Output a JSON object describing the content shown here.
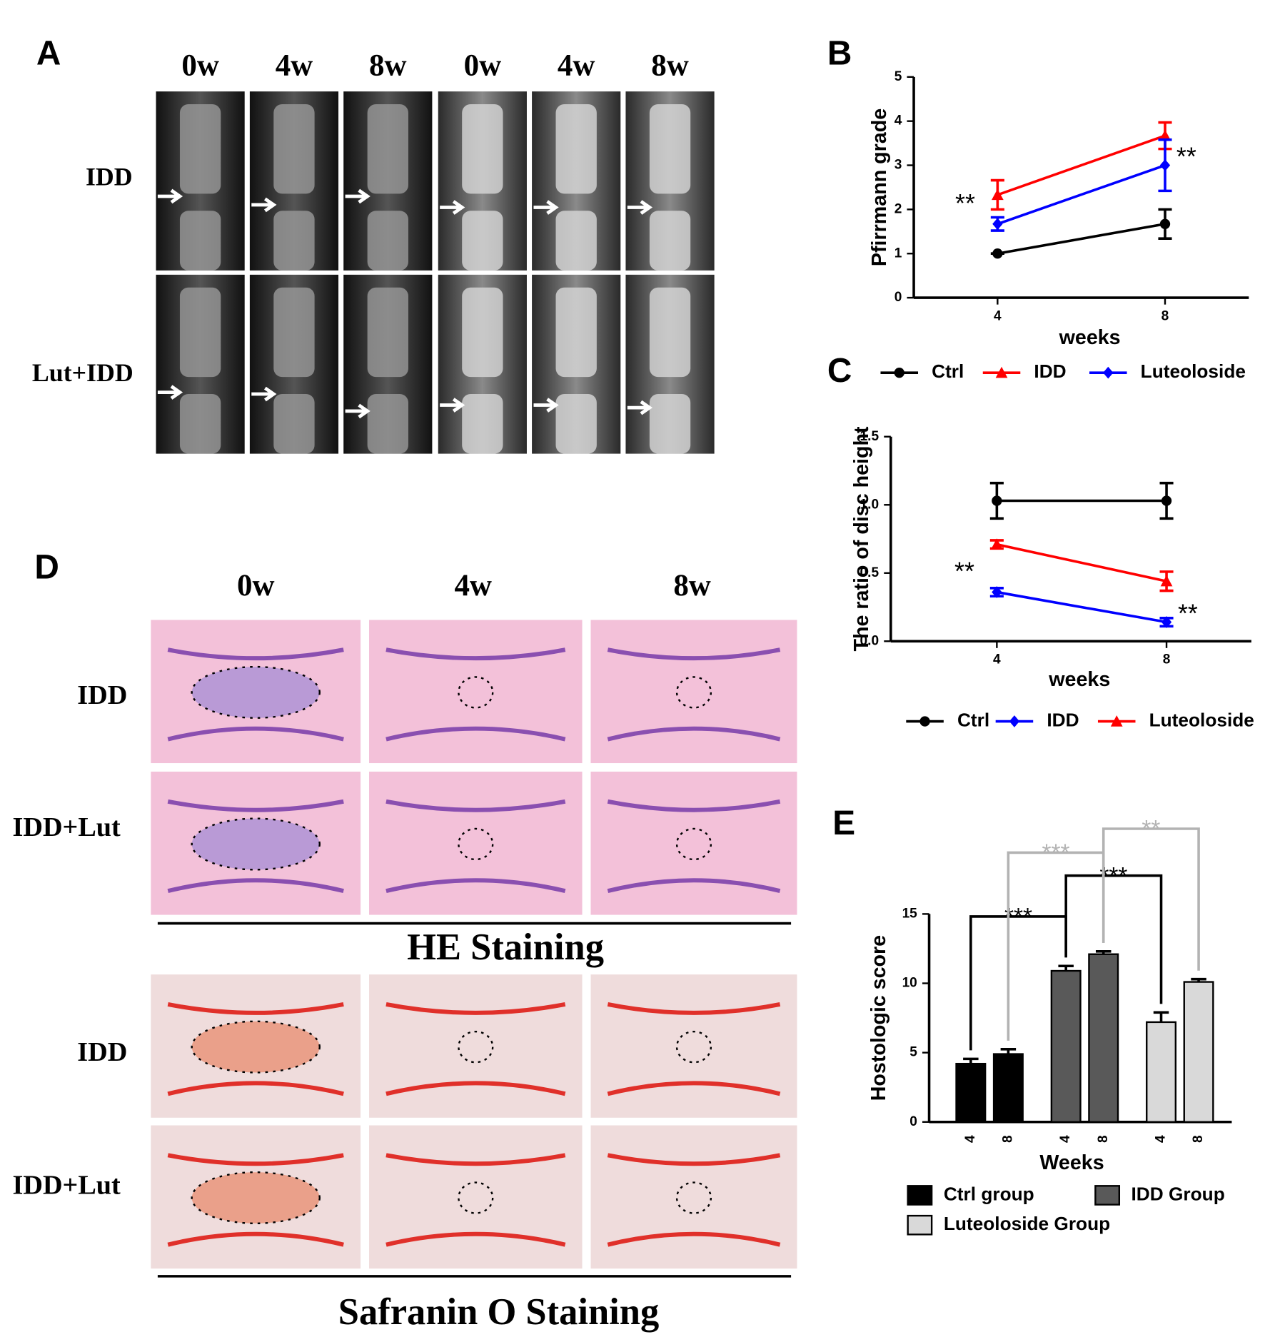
{
  "panel_labels": [
    "A",
    "B",
    "C",
    "D",
    "E"
  ],
  "panel_a": {
    "columns": [
      "0w",
      "4w",
      "8w",
      "0w",
      "4w",
      "8w"
    ],
    "rows": [
      "IDD",
      "Lut+IDD"
    ]
  },
  "panel_d": {
    "columns": [
      "0w",
      "4w",
      "8w"
    ],
    "he_rows": [
      "IDD",
      "IDD+Lut"
    ],
    "he_caption": "HE Staining",
    "so_rows": [
      "IDD",
      "IDD+Lut"
    ],
    "so_caption": "Safranin O Staining"
  },
  "chart_data": [
    {
      "type": "line",
      "xlabel": "weeks",
      "ylabel": "Pfirrmann grade",
      "x": [
        4,
        8
      ],
      "xlim": [
        2,
        10
      ],
      "xticks": [
        4,
        8
      ],
      "ylim": [
        0,
        5
      ],
      "yticks": [
        0,
        1,
        2,
        3,
        4,
        5
      ],
      "series": [
        {
          "name": "Ctrl",
          "color": "#000000",
          "marker": "circle",
          "values": [
            1,
            1.67
          ],
          "errors": [
            0,
            0.33
          ]
        },
        {
          "name": "IDD",
          "color": "#ff0000",
          "marker": "triangle",
          "values": [
            2.33,
            3.67
          ],
          "errors": [
            0.33,
            0.3
          ]
        },
        {
          "name": "Luteoloside",
          "color": "#0000ff",
          "marker": "diamond",
          "values": [
            1.67,
            3.0
          ],
          "errors": [
            0.15,
            0.58
          ]
        }
      ],
      "annotations": [
        {
          "text": "**",
          "x": 4,
          "y": 1.67
        },
        {
          "text": "**",
          "x": 8,
          "y": 3.0
        }
      ]
    },
    {
      "type": "line",
      "xlabel": "weeks",
      "ylabel": "The ratio of disc height",
      "x": [
        4,
        8
      ],
      "xlim": [
        1.5,
        10
      ],
      "xticks": [
        4,
        8
      ],
      "ylim": [
        0,
        1.5
      ],
      "yticks": [
        {
          "value": 0,
          "label": "0.0"
        },
        {
          "value": 0.5,
          "label": "0.5"
        },
        {
          "value": 1,
          "label": "1.0"
        },
        {
          "value": 1.5,
          "label": "1.5"
        }
      ],
      "series": [
        {
          "name": "Ctrl",
          "color": "#000000",
          "marker": "circle",
          "values": [
            1.03,
            1.03
          ],
          "errors": [
            0.13,
            0.13
          ]
        },
        {
          "name": "IDD",
          "color": "#0000ff",
          "marker": "diamond",
          "values": [
            0.36,
            0.14
          ],
          "errors": [
            0.03,
            0.03
          ]
        },
        {
          "name": "Luteoloside",
          "color": "#ff0000",
          "marker": "triangle",
          "values": [
            0.71,
            0.44
          ],
          "errors": [
            0.03,
            0.07
          ]
        }
      ],
      "annotations": [
        {
          "text": "**",
          "x": 4,
          "y": 0.36
        },
        {
          "text": "**",
          "x": 8,
          "y": 0.14
        }
      ]
    },
    {
      "type": "bar",
      "xlabel": "Weeks",
      "ylabel": "Hostologic score",
      "categories": [
        "4",
        "8"
      ],
      "ylim": [
        0,
        15
      ],
      "yticks": [
        0,
        5,
        10,
        15
      ],
      "series": [
        {
          "name": "Ctrl group",
          "color": "#000000",
          "values": [
            4.2,
            4.9
          ],
          "errors": [
            0.35,
            0.35
          ]
        },
        {
          "name": "IDD Group",
          "color": "#595959",
          "values": [
            10.9,
            12.1
          ],
          "errors": [
            0.35,
            0.2
          ]
        },
        {
          "name": "Luteoloside Group",
          "color": "#d9d9d9",
          "values": [
            7.2,
            10.1
          ],
          "errors": [
            0.7,
            0.2
          ]
        }
      ],
      "significance": [
        {
          "label": "***",
          "from": [
            0,
            0
          ],
          "to": [
            1,
            0
          ],
          "color": "#000000"
        },
        {
          "label": "***",
          "from": [
            1,
            0
          ],
          "to": [
            2,
            0
          ],
          "color": "#000000"
        },
        {
          "label": "***",
          "from": [
            0,
            1
          ],
          "to": [
            1,
            1
          ],
          "color": "#b3b3b3"
        },
        {
          "label": "**",
          "from": [
            1,
            1
          ],
          "to": [
            2,
            1
          ],
          "color": "#b3b3b3"
        }
      ]
    }
  ]
}
